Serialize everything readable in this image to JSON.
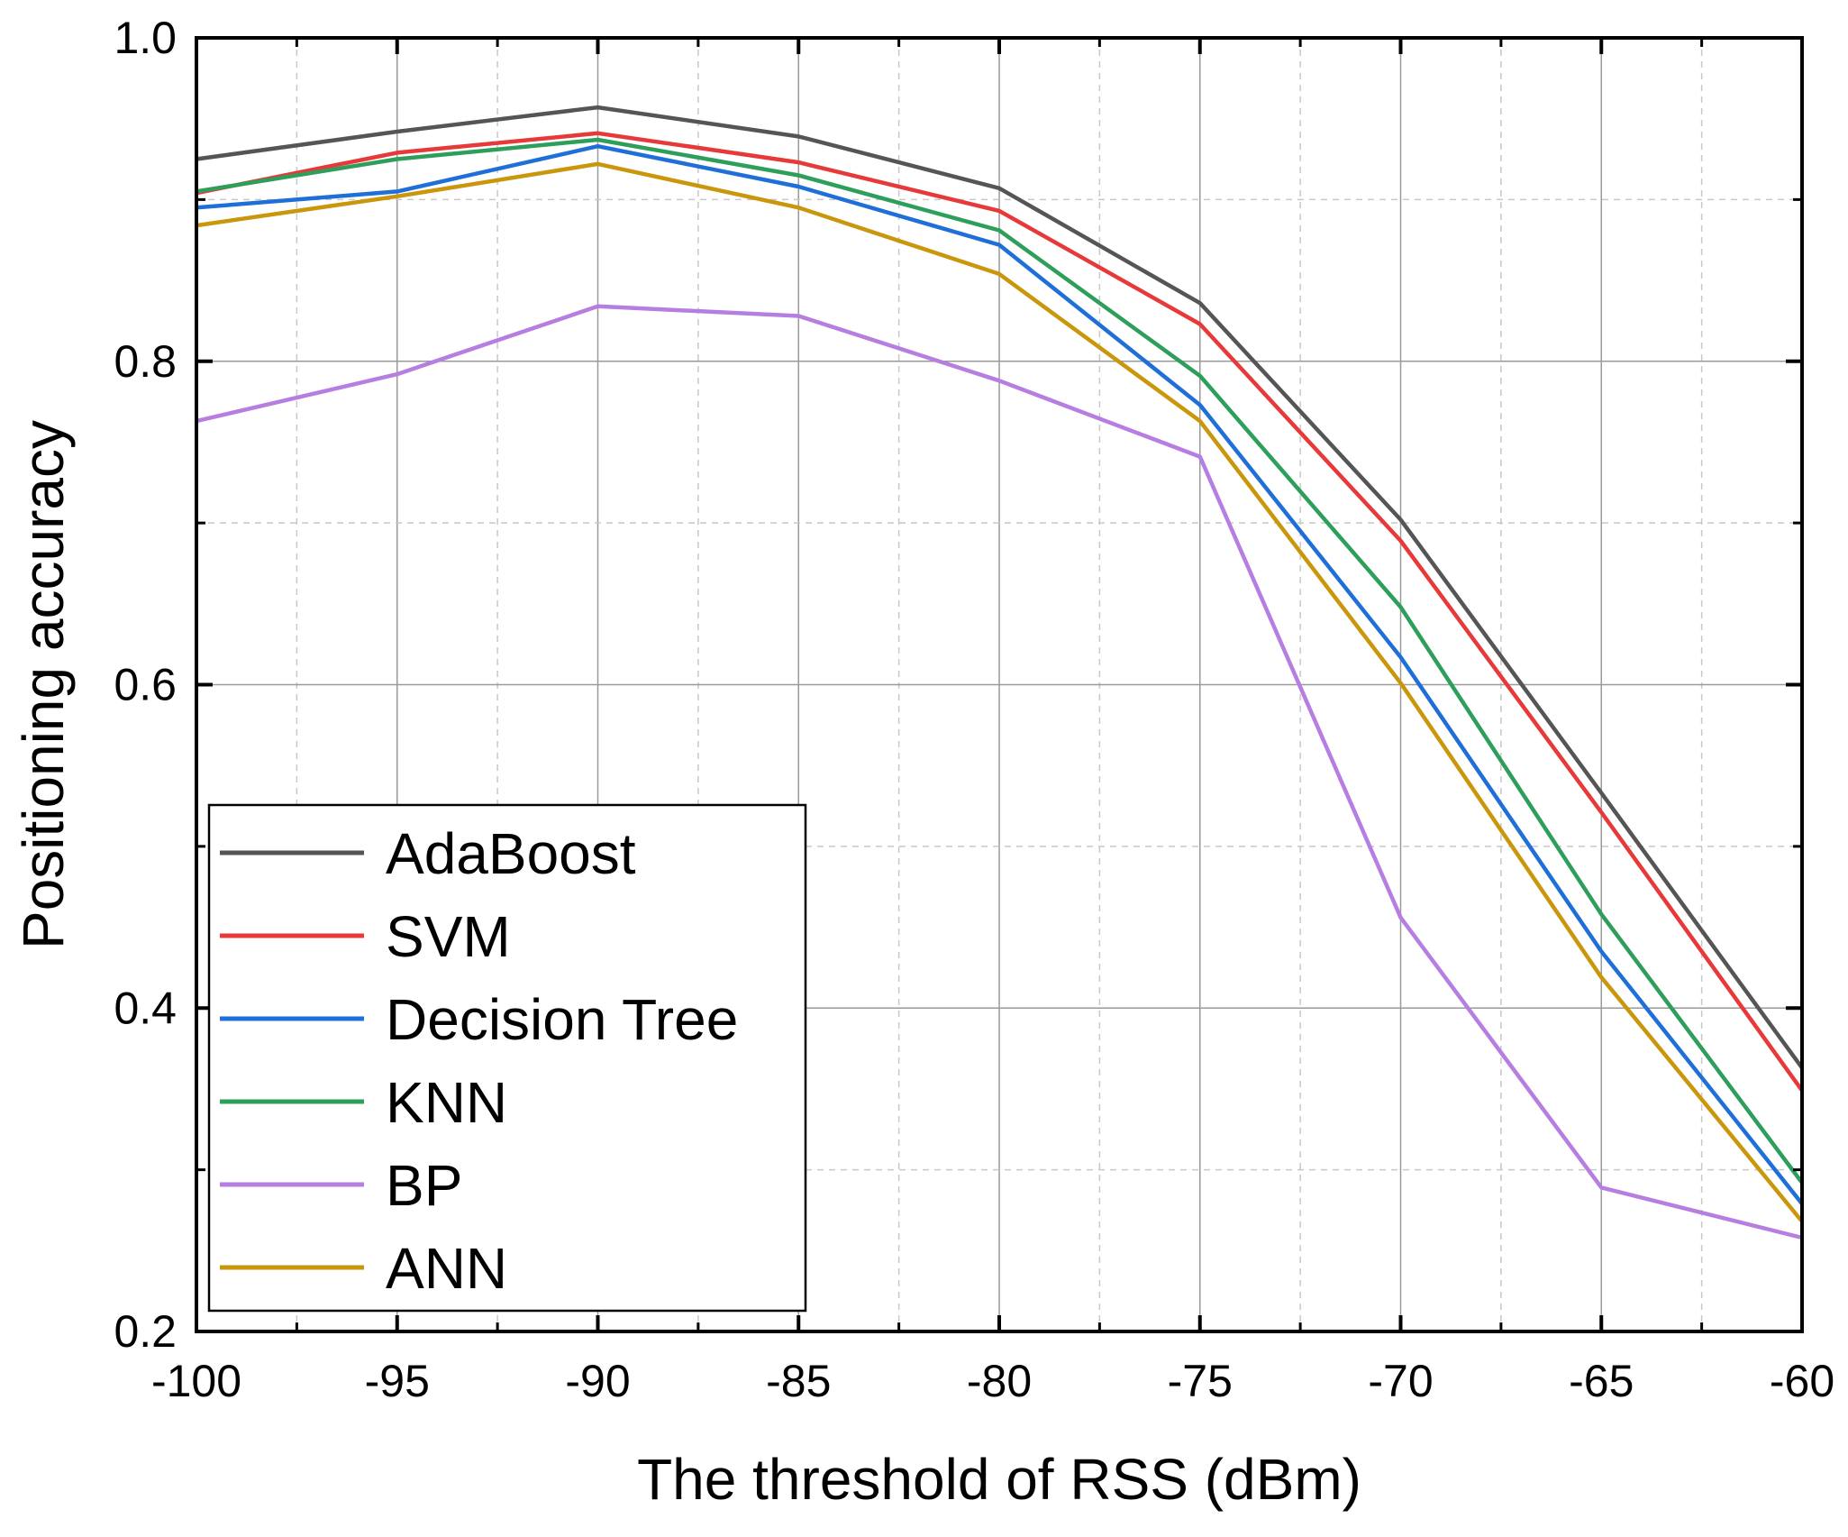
{
  "chart_data": {
    "type": "line",
    "title": "",
    "xlabel": "The threshold of RSS (dBm)",
    "ylabel": "Positioning accuracy",
    "xlim": [
      -100,
      -60
    ],
    "ylim": [
      0.2,
      1.0
    ],
    "grid": true,
    "legend_position": "bottom-left",
    "x": [
      -100,
      -95,
      -90,
      -85,
      -80,
      -75,
      -70,
      -65,
      -60
    ],
    "x_tick_labels": [
      "-100",
      "-95",
      "-90",
      "-85",
      "-80",
      "-75",
      "-70",
      "-65",
      "-60"
    ],
    "y_ticks": [
      0.2,
      0.4,
      0.6,
      0.8,
      1.0
    ],
    "y_tick_labels": [
      "0.2",
      "0.4",
      "0.6",
      "0.8",
      "1.0"
    ],
    "series": [
      {
        "name": "AdaBoost",
        "color": "#555555",
        "values": [
          0.925,
          0.942,
          0.957,
          0.939,
          0.907,
          0.836,
          0.702,
          0.533,
          0.363
        ]
      },
      {
        "name": "SVM",
        "color": "#e8393a",
        "values": [
          0.904,
          0.929,
          0.941,
          0.923,
          0.893,
          0.823,
          0.689,
          0.521,
          0.349
        ]
      },
      {
        "name": "Decision Tree",
        "color": "#1f6fd8",
        "values": [
          0.895,
          0.905,
          0.933,
          0.908,
          0.872,
          0.773,
          0.617,
          0.435,
          0.279
        ]
      },
      {
        "name": "KNN",
        "color": "#2e9e5b",
        "values": [
          0.905,
          0.925,
          0.937,
          0.915,
          0.881,
          0.791,
          0.648,
          0.458,
          0.292
        ]
      },
      {
        "name": "BP",
        "color": "#b57ee0",
        "values": [
          0.763,
          0.792,
          0.834,
          0.828,
          0.788,
          0.741,
          0.456,
          0.289,
          0.258
        ]
      },
      {
        "name": "ANN",
        "color": "#c9960c",
        "values": [
          0.884,
          0.902,
          0.922,
          0.895,
          0.854,
          0.763,
          0.601,
          0.419,
          0.268
        ]
      }
    ]
  }
}
